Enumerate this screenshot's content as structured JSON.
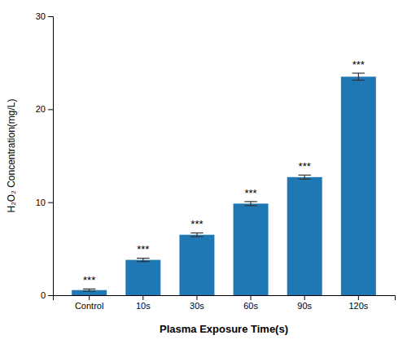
{
  "chart_data": {
    "type": "bar",
    "categories": [
      "Control",
      "10s",
      "30s",
      "60s",
      "90s",
      "120s"
    ],
    "values": [
      0.55,
      3.8,
      6.5,
      9.85,
      12.7,
      23.5
    ],
    "errors": [
      0.12,
      0.18,
      0.2,
      0.22,
      0.22,
      0.38
    ],
    "annotations": [
      "***",
      "***",
      "***",
      "***",
      "***",
      "***"
    ],
    "xlabel": "Plasma Exposure Time(s)",
    "ylabel": "H₂O₂ Concentration(mg/L)",
    "ylim": [
      0,
      30
    ],
    "yticks": [
      0,
      10,
      20,
      30
    ],
    "grid": false
  }
}
